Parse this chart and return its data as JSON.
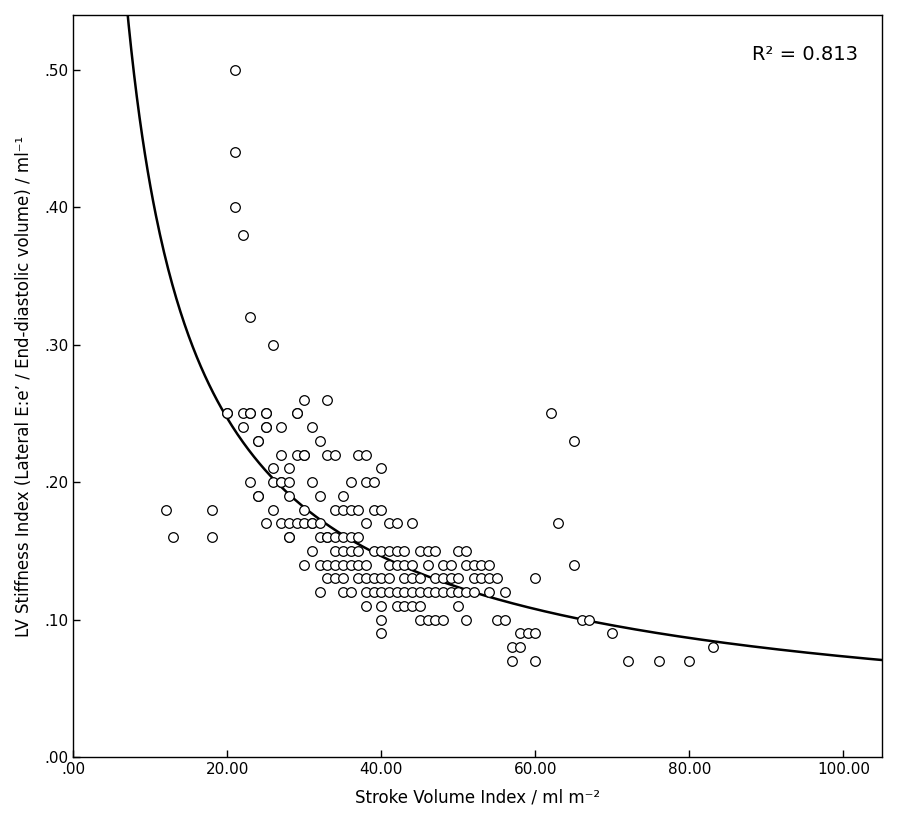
{
  "xlabel": "Stroke Volume Index / ml m⁻²",
  "ylabel": "LV Stiffness Index (Lateral E:e’ / End-diastolic volume) / ml⁻¹",
  "xlim": [
    0,
    105
  ],
  "ylim": [
    0,
    0.54
  ],
  "xticks": [
    0,
    20,
    40,
    60,
    80,
    100
  ],
  "yticks": [
    0.0,
    0.1,
    0.2,
    0.3,
    0.4,
    0.5
  ],
  "xtick_labels": [
    ".00",
    "20.00",
    "40.00",
    "60.00",
    "80.00",
    "100.00"
  ],
  "ytick_labels": [
    ".00",
    ".10",
    ".20",
    ".30",
    ".40",
    ".50"
  ],
  "r_squared": "R² = 0.813",
  "scatter_x": [
    12,
    13,
    18,
    18,
    20,
    20,
    21,
    21,
    21,
    22,
    22,
    22,
    23,
    23,
    23,
    23,
    24,
    24,
    24,
    24,
    25,
    25,
    25,
    25,
    25,
    26,
    26,
    26,
    26,
    27,
    27,
    27,
    27,
    27,
    28,
    28,
    28,
    28,
    28,
    28,
    29,
    29,
    29,
    29,
    30,
    30,
    30,
    30,
    30,
    30,
    31,
    31,
    31,
    31,
    31,
    32,
    32,
    32,
    32,
    32,
    32,
    33,
    33,
    33,
    33,
    33,
    33,
    34,
    34,
    34,
    34,
    34,
    34,
    35,
    35,
    35,
    35,
    35,
    35,
    35,
    36,
    36,
    36,
    36,
    36,
    36,
    37,
    37,
    37,
    37,
    37,
    37,
    38,
    38,
    38,
    38,
    38,
    38,
    38,
    39,
    39,
    39,
    39,
    39,
    40,
    40,
    40,
    40,
    40,
    40,
    40,
    40,
    41,
    41,
    41,
    41,
    41,
    42,
    42,
    42,
    42,
    42,
    43,
    43,
    43,
    43,
    43,
    44,
    44,
    44,
    44,
    44,
    45,
    45,
    45,
    45,
    45,
    46,
    46,
    46,
    46,
    47,
    47,
    47,
    47,
    48,
    48,
    48,
    48,
    49,
    49,
    49,
    50,
    50,
    50,
    50,
    51,
    51,
    51,
    51,
    52,
    52,
    52,
    53,
    53,
    54,
    54,
    54,
    55,
    55,
    56,
    56,
    57,
    57,
    58,
    58,
    59,
    60,
    60,
    60,
    62,
    63,
    65,
    65,
    66,
    67,
    70,
    72,
    76,
    80,
    83
  ],
  "scatter_y": [
    0.18,
    0.16,
    0.18,
    0.16,
    0.25,
    0.25,
    0.5,
    0.44,
    0.4,
    0.38,
    0.25,
    0.24,
    0.32,
    0.25,
    0.25,
    0.2,
    0.23,
    0.23,
    0.19,
    0.19,
    0.25,
    0.25,
    0.24,
    0.24,
    0.17,
    0.3,
    0.21,
    0.2,
    0.18,
    0.24,
    0.22,
    0.2,
    0.2,
    0.17,
    0.21,
    0.2,
    0.19,
    0.17,
    0.16,
    0.16,
    0.25,
    0.25,
    0.22,
    0.17,
    0.26,
    0.22,
    0.22,
    0.18,
    0.17,
    0.14,
    0.24,
    0.2,
    0.17,
    0.17,
    0.15,
    0.23,
    0.19,
    0.17,
    0.16,
    0.14,
    0.12,
    0.26,
    0.22,
    0.16,
    0.16,
    0.14,
    0.13,
    0.22,
    0.18,
    0.16,
    0.15,
    0.14,
    0.13,
    0.19,
    0.18,
    0.16,
    0.15,
    0.14,
    0.13,
    0.12,
    0.2,
    0.18,
    0.16,
    0.15,
    0.14,
    0.12,
    0.22,
    0.18,
    0.16,
    0.15,
    0.14,
    0.13,
    0.22,
    0.2,
    0.17,
    0.14,
    0.13,
    0.12,
    0.11,
    0.2,
    0.18,
    0.15,
    0.13,
    0.12,
    0.21,
    0.18,
    0.15,
    0.13,
    0.12,
    0.11,
    0.1,
    0.09,
    0.17,
    0.15,
    0.14,
    0.13,
    0.12,
    0.17,
    0.15,
    0.14,
    0.12,
    0.11,
    0.15,
    0.14,
    0.13,
    0.12,
    0.11,
    0.17,
    0.14,
    0.13,
    0.12,
    0.11,
    0.15,
    0.13,
    0.12,
    0.11,
    0.1,
    0.15,
    0.14,
    0.12,
    0.1,
    0.15,
    0.13,
    0.12,
    0.1,
    0.14,
    0.13,
    0.12,
    0.1,
    0.14,
    0.13,
    0.12,
    0.15,
    0.13,
    0.12,
    0.11,
    0.15,
    0.14,
    0.12,
    0.1,
    0.14,
    0.13,
    0.12,
    0.14,
    0.13,
    0.14,
    0.13,
    0.12,
    0.13,
    0.1,
    0.12,
    0.1,
    0.08,
    0.07,
    0.09,
    0.08,
    0.09,
    0.13,
    0.09,
    0.07,
    0.25,
    0.17,
    0.23,
    0.14,
    0.1,
    0.1,
    0.09,
    0.07,
    0.07,
    0.07,
    0.08
  ],
  "marker_facecolor": "white",
  "marker_edgecolor": "black",
  "marker_size": 48,
  "marker_linewidth": 0.9,
  "curve_color": "black",
  "curve_linewidth": 1.8,
  "background_color": "white",
  "tick_fontsize": 11,
  "label_fontsize": 12,
  "annotation_fontsize": 14
}
